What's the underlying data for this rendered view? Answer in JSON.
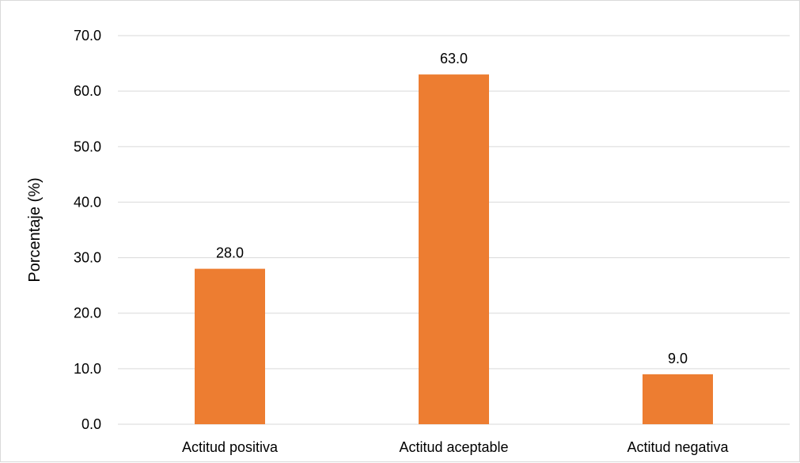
{
  "chart_data": {
    "type": "bar",
    "categories": [
      "Actitud positiva",
      "Actitud aceptable",
      "Actitud negativa"
    ],
    "values": [
      28.0,
      63.0,
      9.0
    ],
    "data_labels": [
      "28.0",
      "63.0",
      "9.0"
    ],
    "title": "",
    "xlabel": "",
    "ylabel": "Porcentaje (%)",
    "ylim": [
      0,
      70
    ],
    "yticks": [
      "0.0",
      "10.0",
      "20.0",
      "30.0",
      "40.0",
      "50.0",
      "60.0",
      "70.0"
    ],
    "grid": true,
    "legend": "none",
    "bar_color": "#ED7D31",
    "gridline_color": "#D9D9D9"
  }
}
